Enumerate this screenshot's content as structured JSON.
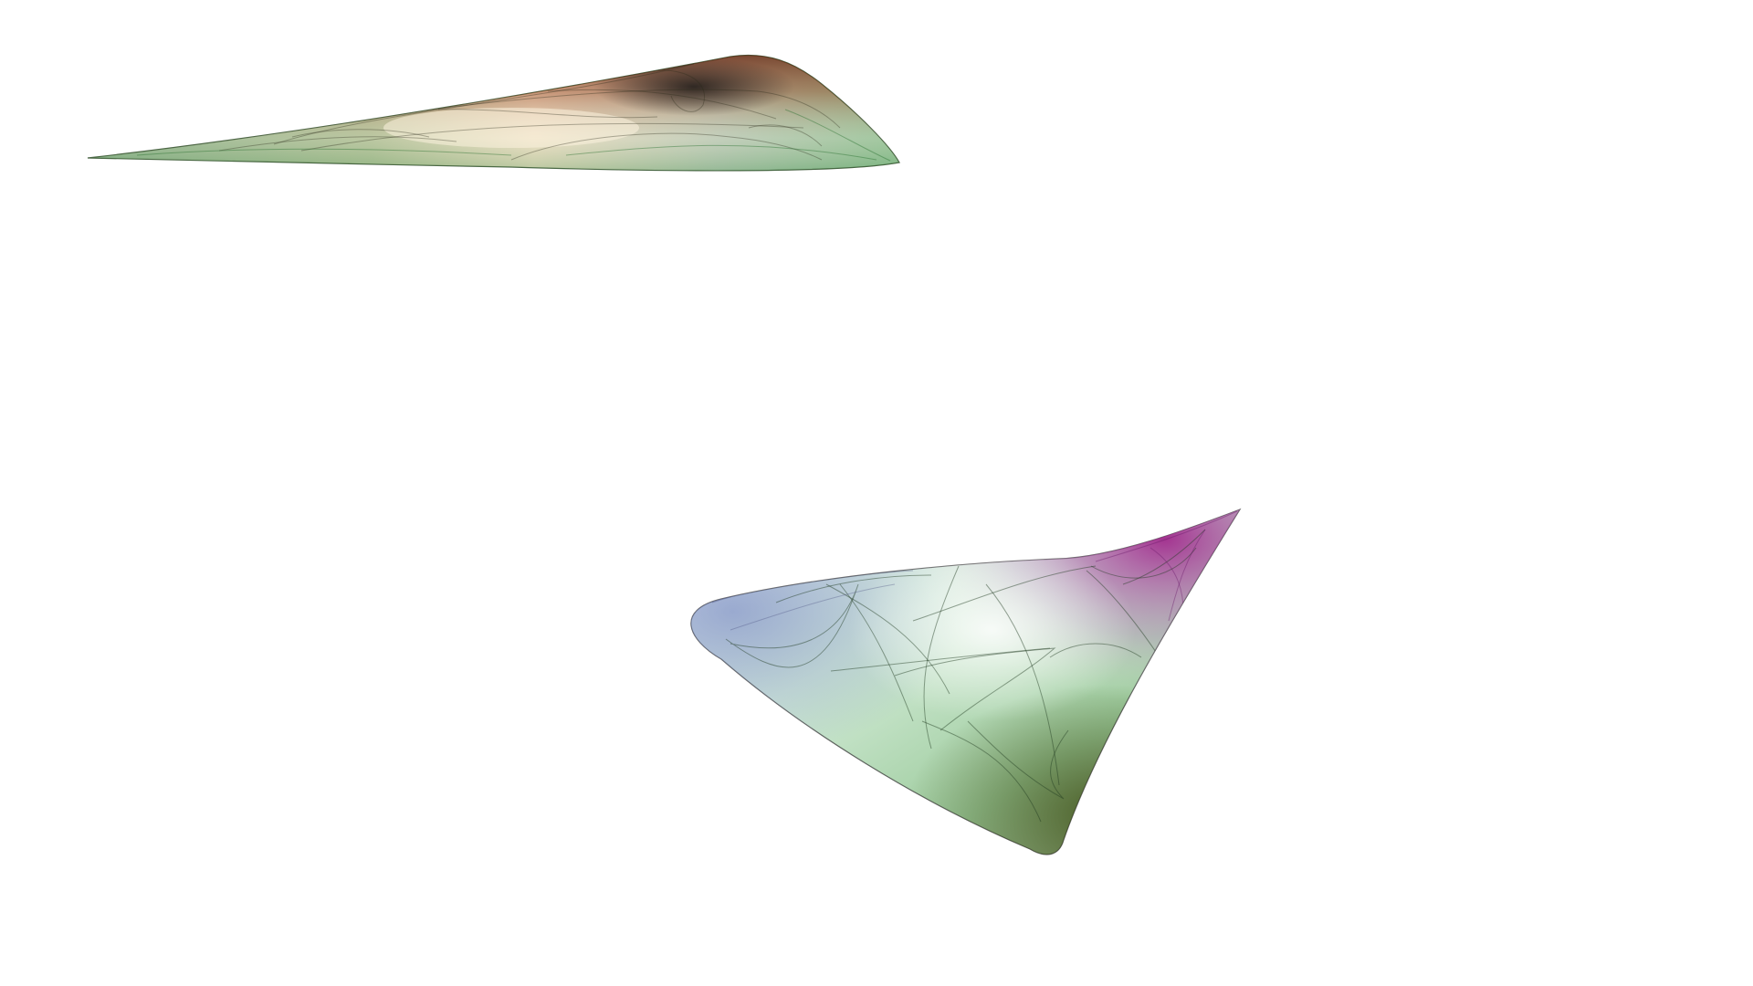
{
  "scene": {
    "background": "#ffffff",
    "attractors": [
      {
        "name": "upper-sliver-attractor",
        "colors": [
          "#1f7a2a",
          "#8a2a10",
          "#222222",
          "#e8d8b0",
          "#2e8a3a"
        ]
      },
      {
        "name": "lower-cone-attractor",
        "colors": [
          "#6a72b8",
          "#a0208a",
          "#2f9a3f",
          "#3a4a10",
          "#7d8a2a"
        ]
      }
    ]
  }
}
